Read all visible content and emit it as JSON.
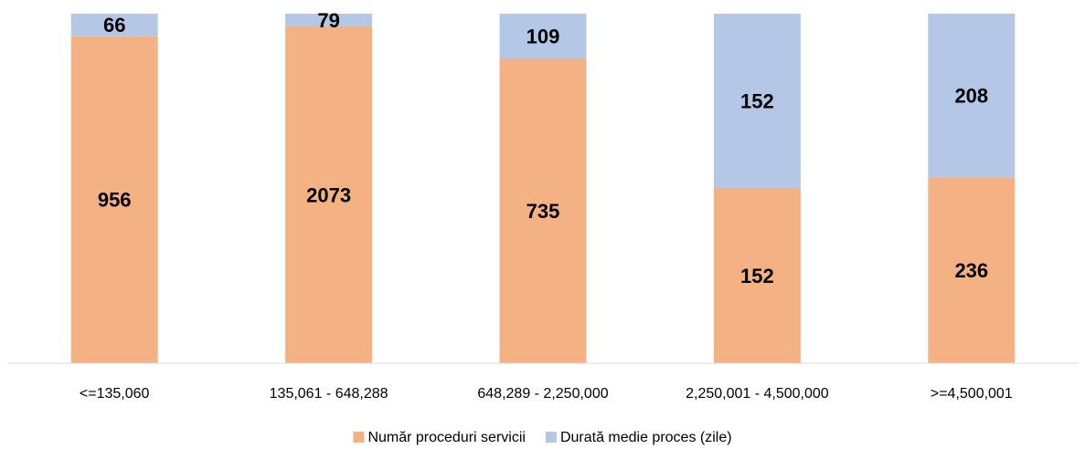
{
  "chart_data": {
    "type": "bar",
    "stack": "percent",
    "categories": [
      "<=135,060",
      "135,061 - 648,288",
      "648,289 - 2,250,000",
      "2,250,001 - 4,500,000",
      ">=4,500,001"
    ],
    "series": [
      {
        "name": "Număr proceduri servicii",
        "color": "#f4b183",
        "values": [
          956,
          2073,
          735,
          152,
          236
        ]
      },
      {
        "name": "Durată medie proces (zile)",
        "color": "#b4c7e7",
        "values": [
          66,
          79,
          109,
          152,
          208
        ]
      }
    ],
    "legend": "bottom"
  }
}
